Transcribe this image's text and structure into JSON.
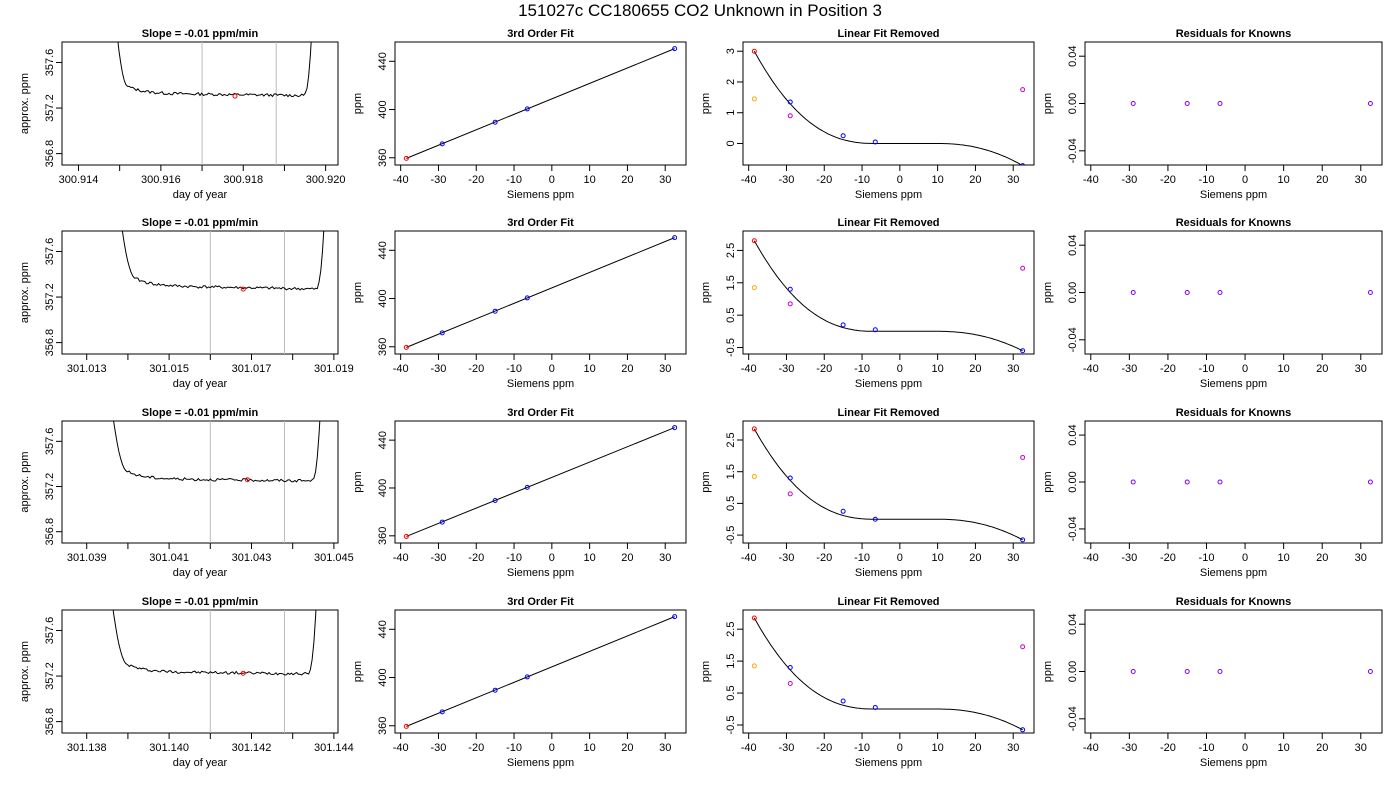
{
  "page_title": "151027c      CC180655    CO2 Unknown in Position  3",
  "colors": {
    "axis": "#000000",
    "trace": "#000000",
    "vline": "#bbbbbb",
    "highlight": "#ff0000",
    "known_standard": "#0000ff",
    "reference": "#ff0000",
    "orange": "#ffa500",
    "magenta": "#cc00cc",
    "residual": "#8000ff"
  },
  "chart_data": [
    {
      "type": "line",
      "panel": "slope",
      "row": 0,
      "title": "Slope =  -0.01  ppm/min",
      "xlabel": "day of year",
      "ylabel": "approx. ppm",
      "xlim": [
        300.9136,
        300.9203
      ],
      "ylim": [
        356.7,
        357.78
      ],
      "xticks": [
        300.914,
        300.916,
        300.918,
        300.92
      ],
      "xtick_labels": [
        "300.914",
        "300.916",
        "300.918",
        "300.920"
      ],
      "xticks_minor": [
        300.915,
        300.917,
        300.919
      ],
      "yticks": [
        356.8,
        357.2,
        357.6
      ],
      "ytick_labels": [
        "356.8",
        "357.2",
        "357.6"
      ],
      "vlines": [
        300.917,
        300.9188
      ],
      "trace": {
        "x_start": 300.9152,
        "x_end": 300.9195,
        "level": 357.33,
        "drift": -0.02,
        "rise_at_start": 0.0003,
        "rise_at_end": 0.0001
      },
      "marker": {
        "x": 300.9178,
        "y": 357.305
      }
    },
    {
      "type": "scatter",
      "panel": "fit",
      "row": 0,
      "title": "3rd Order Fit",
      "xlabel": "Siemens ppm",
      "ylabel": "ppm",
      "xlim": [
        -41.5,
        35.5
      ],
      "ylim": [
        354,
        456
      ],
      "xticks": [
        -40,
        -30,
        -20,
        -10,
        0,
        10,
        20,
        30
      ],
      "yticks": [
        360,
        400,
        440
      ],
      "fit_line": [
        [
          -38.5,
          359.5
        ],
        [
          32.5,
          450.5
        ]
      ],
      "points": [
        {
          "x": -38.5,
          "y": 359.5,
          "color": "reference"
        },
        {
          "x": -29.0,
          "y": 371.5,
          "color": "known_standard"
        },
        {
          "x": -15.0,
          "y": 389.5,
          "color": "known_standard"
        },
        {
          "x": -6.5,
          "y": 400.5,
          "color": "known_standard"
        },
        {
          "x": 32.5,
          "y": 450.5,
          "color": "known_standard"
        }
      ]
    },
    {
      "type": "scatter",
      "panel": "linear_removed",
      "row": 0,
      "title": "Linear Fit Removed",
      "xlabel": "Siemens ppm",
      "ylabel": "ppm",
      "xlim": [
        -41.5,
        35.5
      ],
      "ylim": [
        -0.7,
        3.3
      ],
      "xticks": [
        -40,
        -30,
        -20,
        -10,
        0,
        10,
        20,
        30
      ],
      "yticks": [
        0,
        1,
        2,
        3
      ],
      "curve": {
        "x_from": -38.5,
        "x_to": 32.5,
        "y0": 3.0,
        "y_flat": 0.0,
        "y_end": -0.72,
        "x_knee": -6.5,
        "x_flat_end": 10
      },
      "points": [
        {
          "x": -38.5,
          "y": 3.0,
          "color": "reference"
        },
        {
          "x": -38.5,
          "y": 1.45,
          "color": "orange"
        },
        {
          "x": -29.0,
          "y": 1.35,
          "color": "known_standard"
        },
        {
          "x": -29.0,
          "y": 0.9,
          "color": "magenta"
        },
        {
          "x": -15.0,
          "y": 0.25,
          "color": "known_standard"
        },
        {
          "x": -6.5,
          "y": 0.05,
          "color": "known_standard"
        },
        {
          "x": 32.5,
          "y": -0.72,
          "color": "known_standard"
        },
        {
          "x": 32.5,
          "y": 1.75,
          "color": "magenta"
        }
      ]
    },
    {
      "type": "scatter",
      "panel": "residuals",
      "row": 0,
      "title": "Residuals for Knowns",
      "xlabel": "Siemens ppm",
      "ylabel": "ppm",
      "xlim": [
        -41.5,
        35.5
      ],
      "ylim": [
        -0.052,
        0.052
      ],
      "xticks": [
        -40,
        -30,
        -20,
        -10,
        0,
        10,
        20,
        30
      ],
      "yticks": [
        -0.04,
        0.0,
        0.04
      ],
      "ytick_labels": [
        "-0.04",
        "0.00",
        "0.04"
      ],
      "points": [
        {
          "x": -29.0,
          "y": 0.0,
          "color": "residual"
        },
        {
          "x": -15.0,
          "y": 0.0,
          "color": "residual"
        },
        {
          "x": -6.5,
          "y": 0.0,
          "color": "residual"
        },
        {
          "x": 32.5,
          "y": 0.0,
          "color": "residual"
        }
      ]
    },
    {
      "type": "line",
      "panel": "slope",
      "row": 1,
      "title": "Slope =  -0.01  ppm/min",
      "xlabel": "day of year",
      "ylabel": "approx. ppm",
      "xlim": [
        301.0124,
        301.0191
      ],
      "ylim": [
        356.7,
        357.78
      ],
      "xticks": [
        301.013,
        301.015,
        301.017,
        301.019
      ],
      "xtick_labels": [
        "301.013",
        "301.015",
        "301.017",
        "301.019"
      ],
      "xticks_minor": [
        301.014,
        301.016,
        301.018
      ],
      "yticks": [
        356.8,
        357.2,
        357.6
      ],
      "ytick_labels": [
        "356.8",
        "357.2",
        "357.6"
      ],
      "vlines": [
        301.016,
        301.0178
      ],
      "trace": {
        "x_start": 301.0142,
        "x_end": 301.0186,
        "level": 357.3,
        "drift": -0.03,
        "rise_at_start": 0.0004,
        "rise_at_end": 0.0001
      },
      "marker": {
        "x": 301.0168,
        "y": 357.27
      }
    },
    {
      "type": "scatter",
      "panel": "fit",
      "row": 1,
      "title": "3rd Order Fit",
      "xlabel": "Siemens ppm",
      "ylabel": "ppm",
      "xlim": [
        -41.5,
        35.5
      ],
      "ylim": [
        354,
        456
      ],
      "xticks": [
        -40,
        -30,
        -20,
        -10,
        0,
        10,
        20,
        30
      ],
      "yticks": [
        360,
        400,
        440
      ],
      "fit_line": [
        [
          -38.5,
          359.5
        ],
        [
          32.5,
          450.5
        ]
      ],
      "points": [
        {
          "x": -38.5,
          "y": 359.5,
          "color": "reference"
        },
        {
          "x": -29.0,
          "y": 371.5,
          "color": "known_standard"
        },
        {
          "x": -15.0,
          "y": 389.5,
          "color": "known_standard"
        },
        {
          "x": -6.5,
          "y": 400.5,
          "color": "known_standard"
        },
        {
          "x": 32.5,
          "y": 450.5,
          "color": "known_standard"
        }
      ]
    },
    {
      "type": "scatter",
      "panel": "linear_removed",
      "row": 1,
      "title": "Linear Fit Removed",
      "xlabel": "Siemens ppm",
      "ylabel": "ppm",
      "xlim": [
        -41.5,
        35.5
      ],
      "ylim": [
        -0.7,
        3.1
      ],
      "xticks": [
        -40,
        -30,
        -20,
        -10,
        0,
        10,
        20,
        30
      ],
      "yticks": [
        -0.5,
        0.5,
        1.5,
        2.5
      ],
      "ytick_labels": [
        "-0.5",
        "0.5",
        "1.5",
        "2.5"
      ],
      "curve": {
        "x_from": -38.5,
        "x_to": 32.5,
        "y0": 2.8,
        "y_flat": 0.0,
        "y_end": -0.6,
        "x_knee": -6.5,
        "x_flat_end": 10
      },
      "points": [
        {
          "x": -38.5,
          "y": 2.8,
          "color": "reference"
        },
        {
          "x": -38.5,
          "y": 1.35,
          "color": "orange"
        },
        {
          "x": -29.0,
          "y": 1.3,
          "color": "known_standard"
        },
        {
          "x": -29.0,
          "y": 0.85,
          "color": "magenta"
        },
        {
          "x": -15.0,
          "y": 0.2,
          "color": "known_standard"
        },
        {
          "x": -6.5,
          "y": 0.05,
          "color": "known_standard"
        },
        {
          "x": 32.5,
          "y": -0.6,
          "color": "known_standard"
        },
        {
          "x": 32.5,
          "y": 1.95,
          "color": "magenta"
        }
      ]
    },
    {
      "type": "scatter",
      "panel": "residuals",
      "row": 1,
      "title": "Residuals for Knowns",
      "xlabel": "Siemens ppm",
      "ylabel": "ppm",
      "xlim": [
        -41.5,
        35.5
      ],
      "ylim": [
        -0.052,
        0.052
      ],
      "xticks": [
        -40,
        -30,
        -20,
        -10,
        0,
        10,
        20,
        30
      ],
      "yticks": [
        -0.04,
        0.0,
        0.04
      ],
      "ytick_labels": [
        "-0.04",
        "0.00",
        "0.04"
      ],
      "points": [
        {
          "x": -29.0,
          "y": 0.0,
          "color": "residual"
        },
        {
          "x": -15.0,
          "y": 0.0,
          "color": "residual"
        },
        {
          "x": -6.5,
          "y": 0.0,
          "color": "residual"
        },
        {
          "x": 32.5,
          "y": 0.0,
          "color": "residual"
        }
      ]
    },
    {
      "type": "line",
      "panel": "slope",
      "row": 2,
      "title": "Slope =  -0.01  ppm/min",
      "xlabel": "day of year",
      "ylabel": "approx. ppm",
      "xlim": [
        301.0384,
        301.0451
      ],
      "ylim": [
        356.7,
        357.78
      ],
      "xticks": [
        301.039,
        301.041,
        301.043,
        301.045
      ],
      "xtick_labels": [
        "301.039",
        "301.041",
        "301.043",
        "301.045"
      ],
      "xticks_minor": [
        301.04,
        301.042,
        301.044
      ],
      "yticks": [
        356.8,
        357.2,
        357.6
      ],
      "ytick_labels": [
        "356.8",
        "357.2",
        "357.6"
      ],
      "vlines": [
        301.042,
        301.0438
      ],
      "trace": {
        "x_start": 301.04,
        "x_end": 301.0445,
        "level": 357.27,
        "drift": -0.02,
        "rise_at_start": 0.0004,
        "rise_at_end": 0.0001
      },
      "marker": {
        "x": 301.0429,
        "y": 357.26
      }
    },
    {
      "type": "scatter",
      "panel": "fit",
      "row": 2,
      "title": "3rd Order Fit",
      "xlabel": "Siemens ppm",
      "ylabel": "ppm",
      "xlim": [
        -41.5,
        35.5
      ],
      "ylim": [
        354,
        456
      ],
      "xticks": [
        -40,
        -30,
        -20,
        -10,
        0,
        10,
        20,
        30
      ],
      "yticks": [
        360,
        400,
        440
      ],
      "fit_line": [
        [
          -38.5,
          359.5
        ],
        [
          32.5,
          450.5
        ]
      ],
      "points": [
        {
          "x": -38.5,
          "y": 359.5,
          "color": "reference"
        },
        {
          "x": -29.0,
          "y": 371.5,
          "color": "known_standard"
        },
        {
          "x": -15.0,
          "y": 389.5,
          "color": "known_standard"
        },
        {
          "x": -6.5,
          "y": 400.5,
          "color": "known_standard"
        },
        {
          "x": 32.5,
          "y": 450.5,
          "color": "known_standard"
        }
      ]
    },
    {
      "type": "scatter",
      "panel": "linear_removed",
      "row": 2,
      "title": "Linear Fit Removed",
      "xlabel": "Siemens ppm",
      "ylabel": "ppm",
      "xlim": [
        -41.5,
        35.5
      ],
      "ylim": [
        -0.75,
        3.1
      ],
      "xticks": [
        -40,
        -30,
        -20,
        -10,
        0,
        10,
        20,
        30
      ],
      "yticks": [
        -0.5,
        0.5,
        1.5,
        2.5
      ],
      "ytick_labels": [
        "-0.5",
        "0.5",
        "1.5",
        "2.5"
      ],
      "curve": {
        "x_from": -38.5,
        "x_to": 32.5,
        "y0": 2.85,
        "y_flat": 0.0,
        "y_end": -0.65,
        "x_knee": -6.5,
        "x_flat_end": 10
      },
      "points": [
        {
          "x": -38.5,
          "y": 2.85,
          "color": "reference"
        },
        {
          "x": -38.5,
          "y": 1.35,
          "color": "orange"
        },
        {
          "x": -29.0,
          "y": 1.3,
          "color": "known_standard"
        },
        {
          "x": -29.0,
          "y": 0.8,
          "color": "magenta"
        },
        {
          "x": -15.0,
          "y": 0.25,
          "color": "known_standard"
        },
        {
          "x": -6.5,
          "y": 0.0,
          "color": "known_standard"
        },
        {
          "x": 32.5,
          "y": -0.65,
          "color": "known_standard"
        },
        {
          "x": 32.5,
          "y": 1.95,
          "color": "magenta"
        }
      ]
    },
    {
      "type": "scatter",
      "panel": "residuals",
      "row": 2,
      "title": "Residuals for Knowns",
      "xlabel": "Siemens ppm",
      "ylabel": "ppm",
      "xlim": [
        -41.5,
        35.5
      ],
      "ylim": [
        -0.052,
        0.052
      ],
      "xticks": [
        -40,
        -30,
        -20,
        -10,
        0,
        10,
        20,
        30
      ],
      "yticks": [
        -0.04,
        0.0,
        0.04
      ],
      "ytick_labels": [
        "-0.04",
        "0.00",
        "0.04"
      ],
      "points": [
        {
          "x": -29.0,
          "y": 0.0,
          "color": "residual"
        },
        {
          "x": -15.0,
          "y": 0.0,
          "color": "residual"
        },
        {
          "x": -6.5,
          "y": 0.0,
          "color": "residual"
        },
        {
          "x": 32.5,
          "y": 0.0,
          "color": "residual"
        }
      ]
    },
    {
      "type": "line",
      "panel": "slope",
      "row": 3,
      "title": "Slope =  -0.01  ppm/min",
      "xlabel": "day of year",
      "ylabel": "approx. ppm",
      "xlim": [
        301.1374,
        301.1441
      ],
      "ylim": [
        356.7,
        357.78
      ],
      "xticks": [
        301.138,
        301.14,
        301.142,
        301.144
      ],
      "xtick_labels": [
        "301.138",
        "301.140",
        "301.142",
        "301.144"
      ],
      "xticks_minor": [
        301.139,
        301.141,
        301.143
      ],
      "yticks": [
        356.8,
        357.2,
        357.6
      ],
      "ytick_labels": [
        "356.8",
        "357.2",
        "357.6"
      ],
      "vlines": [
        301.141,
        301.1428
      ],
      "trace": {
        "x_start": 301.139,
        "x_end": 301.1434,
        "level": 357.24,
        "drift": -0.02,
        "rise_at_start": 0.0004,
        "rise_at_end": 0.0001
      },
      "marker": {
        "x": 301.1418,
        "y": 357.225
      }
    },
    {
      "type": "scatter",
      "panel": "fit",
      "row": 3,
      "title": "3rd Order Fit",
      "xlabel": "Siemens ppm",
      "ylabel": "ppm",
      "xlim": [
        -41.5,
        35.5
      ],
      "ylim": [
        354,
        456
      ],
      "xticks": [
        -40,
        -30,
        -20,
        -10,
        0,
        10,
        20,
        30
      ],
      "yticks": [
        360,
        400,
        440
      ],
      "fit_line": [
        [
          -38.5,
          359.5
        ],
        [
          32.5,
          450.5
        ]
      ],
      "points": [
        {
          "x": -38.5,
          "y": 359.5,
          "color": "reference"
        },
        {
          "x": -29.0,
          "y": 371.5,
          "color": "known_standard"
        },
        {
          "x": -15.0,
          "y": 389.5,
          "color": "known_standard"
        },
        {
          "x": -6.5,
          "y": 400.5,
          "color": "known_standard"
        },
        {
          "x": 32.5,
          "y": 450.5,
          "color": "known_standard"
        }
      ]
    },
    {
      "type": "scatter",
      "panel": "linear_removed",
      "row": 3,
      "title": "Linear Fit Removed",
      "xlabel": "Siemens ppm",
      "ylabel": "ppm",
      "xlim": [
        -41.5,
        35.5
      ],
      "ylim": [
        -0.75,
        3.1
      ],
      "xticks": [
        -40,
        -30,
        -20,
        -10,
        0,
        10,
        20,
        30
      ],
      "yticks": [
        -0.5,
        0.5,
        1.5,
        2.5
      ],
      "ytick_labels": [
        "-0.5",
        "0.5",
        "1.5",
        "2.5"
      ],
      "curve": {
        "x_from": -38.5,
        "x_to": 32.5,
        "y0": 2.85,
        "y_flat": 0.0,
        "y_end": -0.65,
        "x_knee": -6.5,
        "x_flat_end": 10
      },
      "points": [
        {
          "x": -38.5,
          "y": 2.85,
          "color": "reference"
        },
        {
          "x": -38.5,
          "y": 1.35,
          "color": "orange"
        },
        {
          "x": -29.0,
          "y": 1.3,
          "color": "known_standard"
        },
        {
          "x": -29.0,
          "y": 0.8,
          "color": "magenta"
        },
        {
          "x": -15.0,
          "y": 0.25,
          "color": "known_standard"
        },
        {
          "x": -6.5,
          "y": 0.05,
          "color": "known_standard"
        },
        {
          "x": 32.5,
          "y": -0.65,
          "color": "known_standard"
        },
        {
          "x": 32.5,
          "y": 1.95,
          "color": "magenta"
        }
      ]
    },
    {
      "type": "scatter",
      "panel": "residuals",
      "row": 3,
      "title": "Residuals for Knowns",
      "xlabel": "Siemens ppm",
      "ylabel": "ppm",
      "xlim": [
        -41.5,
        35.5
      ],
      "ylim": [
        -0.052,
        0.052
      ],
      "xticks": [
        -40,
        -30,
        -20,
        -10,
        0,
        10,
        20,
        30
      ],
      "yticks": [
        -0.04,
        0.0,
        0.04
      ],
      "ytick_labels": [
        "-0.04",
        "0.00",
        "0.04"
      ],
      "points": [
        {
          "x": -29.0,
          "y": 0.0,
          "color": "residual"
        },
        {
          "x": -15.0,
          "y": 0.0,
          "color": "residual"
        },
        {
          "x": -6.5,
          "y": 0.0,
          "color": "residual"
        },
        {
          "x": 32.5,
          "y": 0.0,
          "color": "residual"
        }
      ]
    }
  ]
}
